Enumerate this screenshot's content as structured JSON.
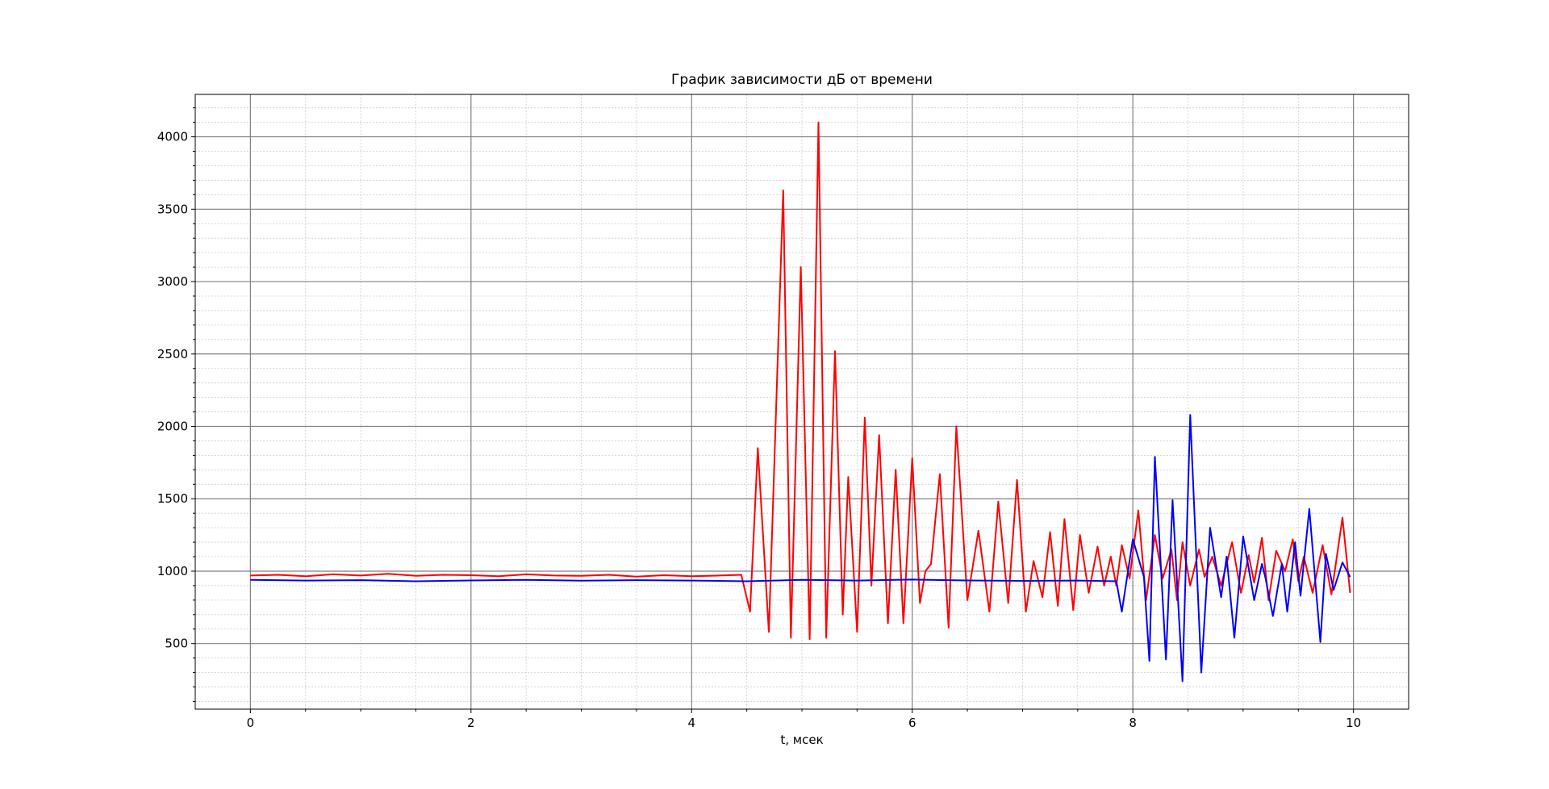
{
  "chart_data": {
    "type": "line",
    "title": "График зависимости дБ от времени",
    "x_label": "t, мсек",
    "xlim": [
      -0.5,
      10.5
    ],
    "ylim": [
      47,
      4293
    ],
    "xticks": [
      0,
      2,
      4,
      6,
      8,
      10
    ],
    "yticks": [
      500,
      1000,
      1500,
      2000,
      2500,
      3000,
      3500,
      4000
    ],
    "xminorticks": [
      0.5,
      1,
      1.5,
      2.5,
      3,
      3.5,
      4.5,
      5,
      5.5,
      6.5,
      7,
      7.5,
      8.5,
      9,
      9.5
    ],
    "yminorticks": [
      100,
      200,
      300,
      400,
      600,
      700,
      800,
      900,
      1100,
      1200,
      1300,
      1400,
      1600,
      1700,
      1800,
      1900,
      2100,
      2200,
      2300,
      2400,
      2600,
      2700,
      2800,
      2900,
      3100,
      3200,
      3300,
      3400,
      3600,
      3700,
      3800,
      3900,
      4100,
      4200
    ],
    "grid": true,
    "series": [
      {
        "color": "#ff0000",
        "x": [
          0,
          0.25,
          0.5,
          0.75,
          1,
          1.25,
          1.5,
          1.75,
          2,
          2.25,
          2.5,
          2.75,
          3,
          3.25,
          3.5,
          3.75,
          4,
          4.25,
          4.45,
          4.53,
          4.6,
          4.7,
          4.83,
          4.9,
          4.99,
          5.07,
          5.15,
          5.22,
          5.3,
          5.37,
          5.42,
          5.5,
          5.57,
          5.63,
          5.7,
          5.78,
          5.85,
          5.92,
          6.0,
          6.07,
          6.12,
          6.17,
          6.25,
          6.33,
          6.4,
          6.5,
          6.6,
          6.7,
          6.78,
          6.87,
          6.95,
          7.03,
          7.1,
          7.18,
          7.25,
          7.32,
          7.38,
          7.46,
          7.52,
          7.6,
          7.68,
          7.74,
          7.8,
          7.85,
          7.9,
          7.97,
          8.05,
          8.12,
          8.2,
          8.27,
          8.35,
          8.4,
          8.45,
          8.52,
          8.6,
          8.65,
          8.72,
          8.8,
          8.9,
          8.98,
          9.05,
          9.1,
          9.17,
          9.23,
          9.3,
          9.38,
          9.45,
          9.5,
          9.55,
          9.63,
          9.72,
          9.8,
          9.9,
          9.97
        ],
        "values": [
          970,
          975,
          965,
          978,
          970,
          982,
          968,
          975,
          972,
          965,
          978,
          970,
          968,
          975,
          962,
          972,
          965,
          970,
          975,
          720,
          1850,
          580,
          3630,
          540,
          3100,
          530,
          4100,
          540,
          2520,
          700,
          1650,
          580,
          2060,
          900,
          1940,
          640,
          1700,
          640,
          1780,
          780,
          1000,
          1050,
          1670,
          610,
          2000,
          800,
          1280,
          720,
          1480,
          780,
          1630,
          720,
          1070,
          820,
          1270,
          760,
          1360,
          730,
          1250,
          850,
          1170,
          900,
          1100,
          900,
          1180,
          950,
          1420,
          800,
          1250,
          950,
          1150,
          800,
          1200,
          900,
          1150,
          960,
          1100,
          900,
          1200,
          850,
          1110,
          920,
          1230,
          800,
          1140,
          1000,
          1220,
          930,
          1100,
          850,
          1180,
          840,
          1370,
          850
        ]
      },
      {
        "color": "#0000ff",
        "x": [
          0,
          0.5,
          1,
          1.5,
          2,
          2.5,
          3,
          3.5,
          4,
          4.5,
          5,
          5.5,
          6,
          6.5,
          7,
          7.5,
          7.85,
          7.9,
          8.0,
          8.1,
          8.15,
          8.2,
          8.3,
          8.36,
          8.45,
          8.52,
          8.62,
          8.7,
          8.8,
          8.85,
          8.92,
          9.0,
          9.1,
          9.17,
          9.2,
          9.27,
          9.35,
          9.4,
          9.47,
          9.52,
          9.6,
          9.7,
          9.75,
          9.82,
          9.9,
          9.97
        ],
        "values": [
          940,
          935,
          938,
          930,
          936,
          940,
          934,
          938,
          935,
          930,
          940,
          935,
          942,
          936,
          933,
          935,
          930,
          720,
          1220,
          960,
          380,
          1790,
          390,
          1490,
          240,
          2080,
          300,
          1300,
          820,
          1100,
          540,
          1240,
          800,
          1050,
          960,
          690,
          1050,
          720,
          1200,
          830,
          1430,
          510,
          1120,
          870,
          1060,
          960
        ]
      }
    ]
  }
}
